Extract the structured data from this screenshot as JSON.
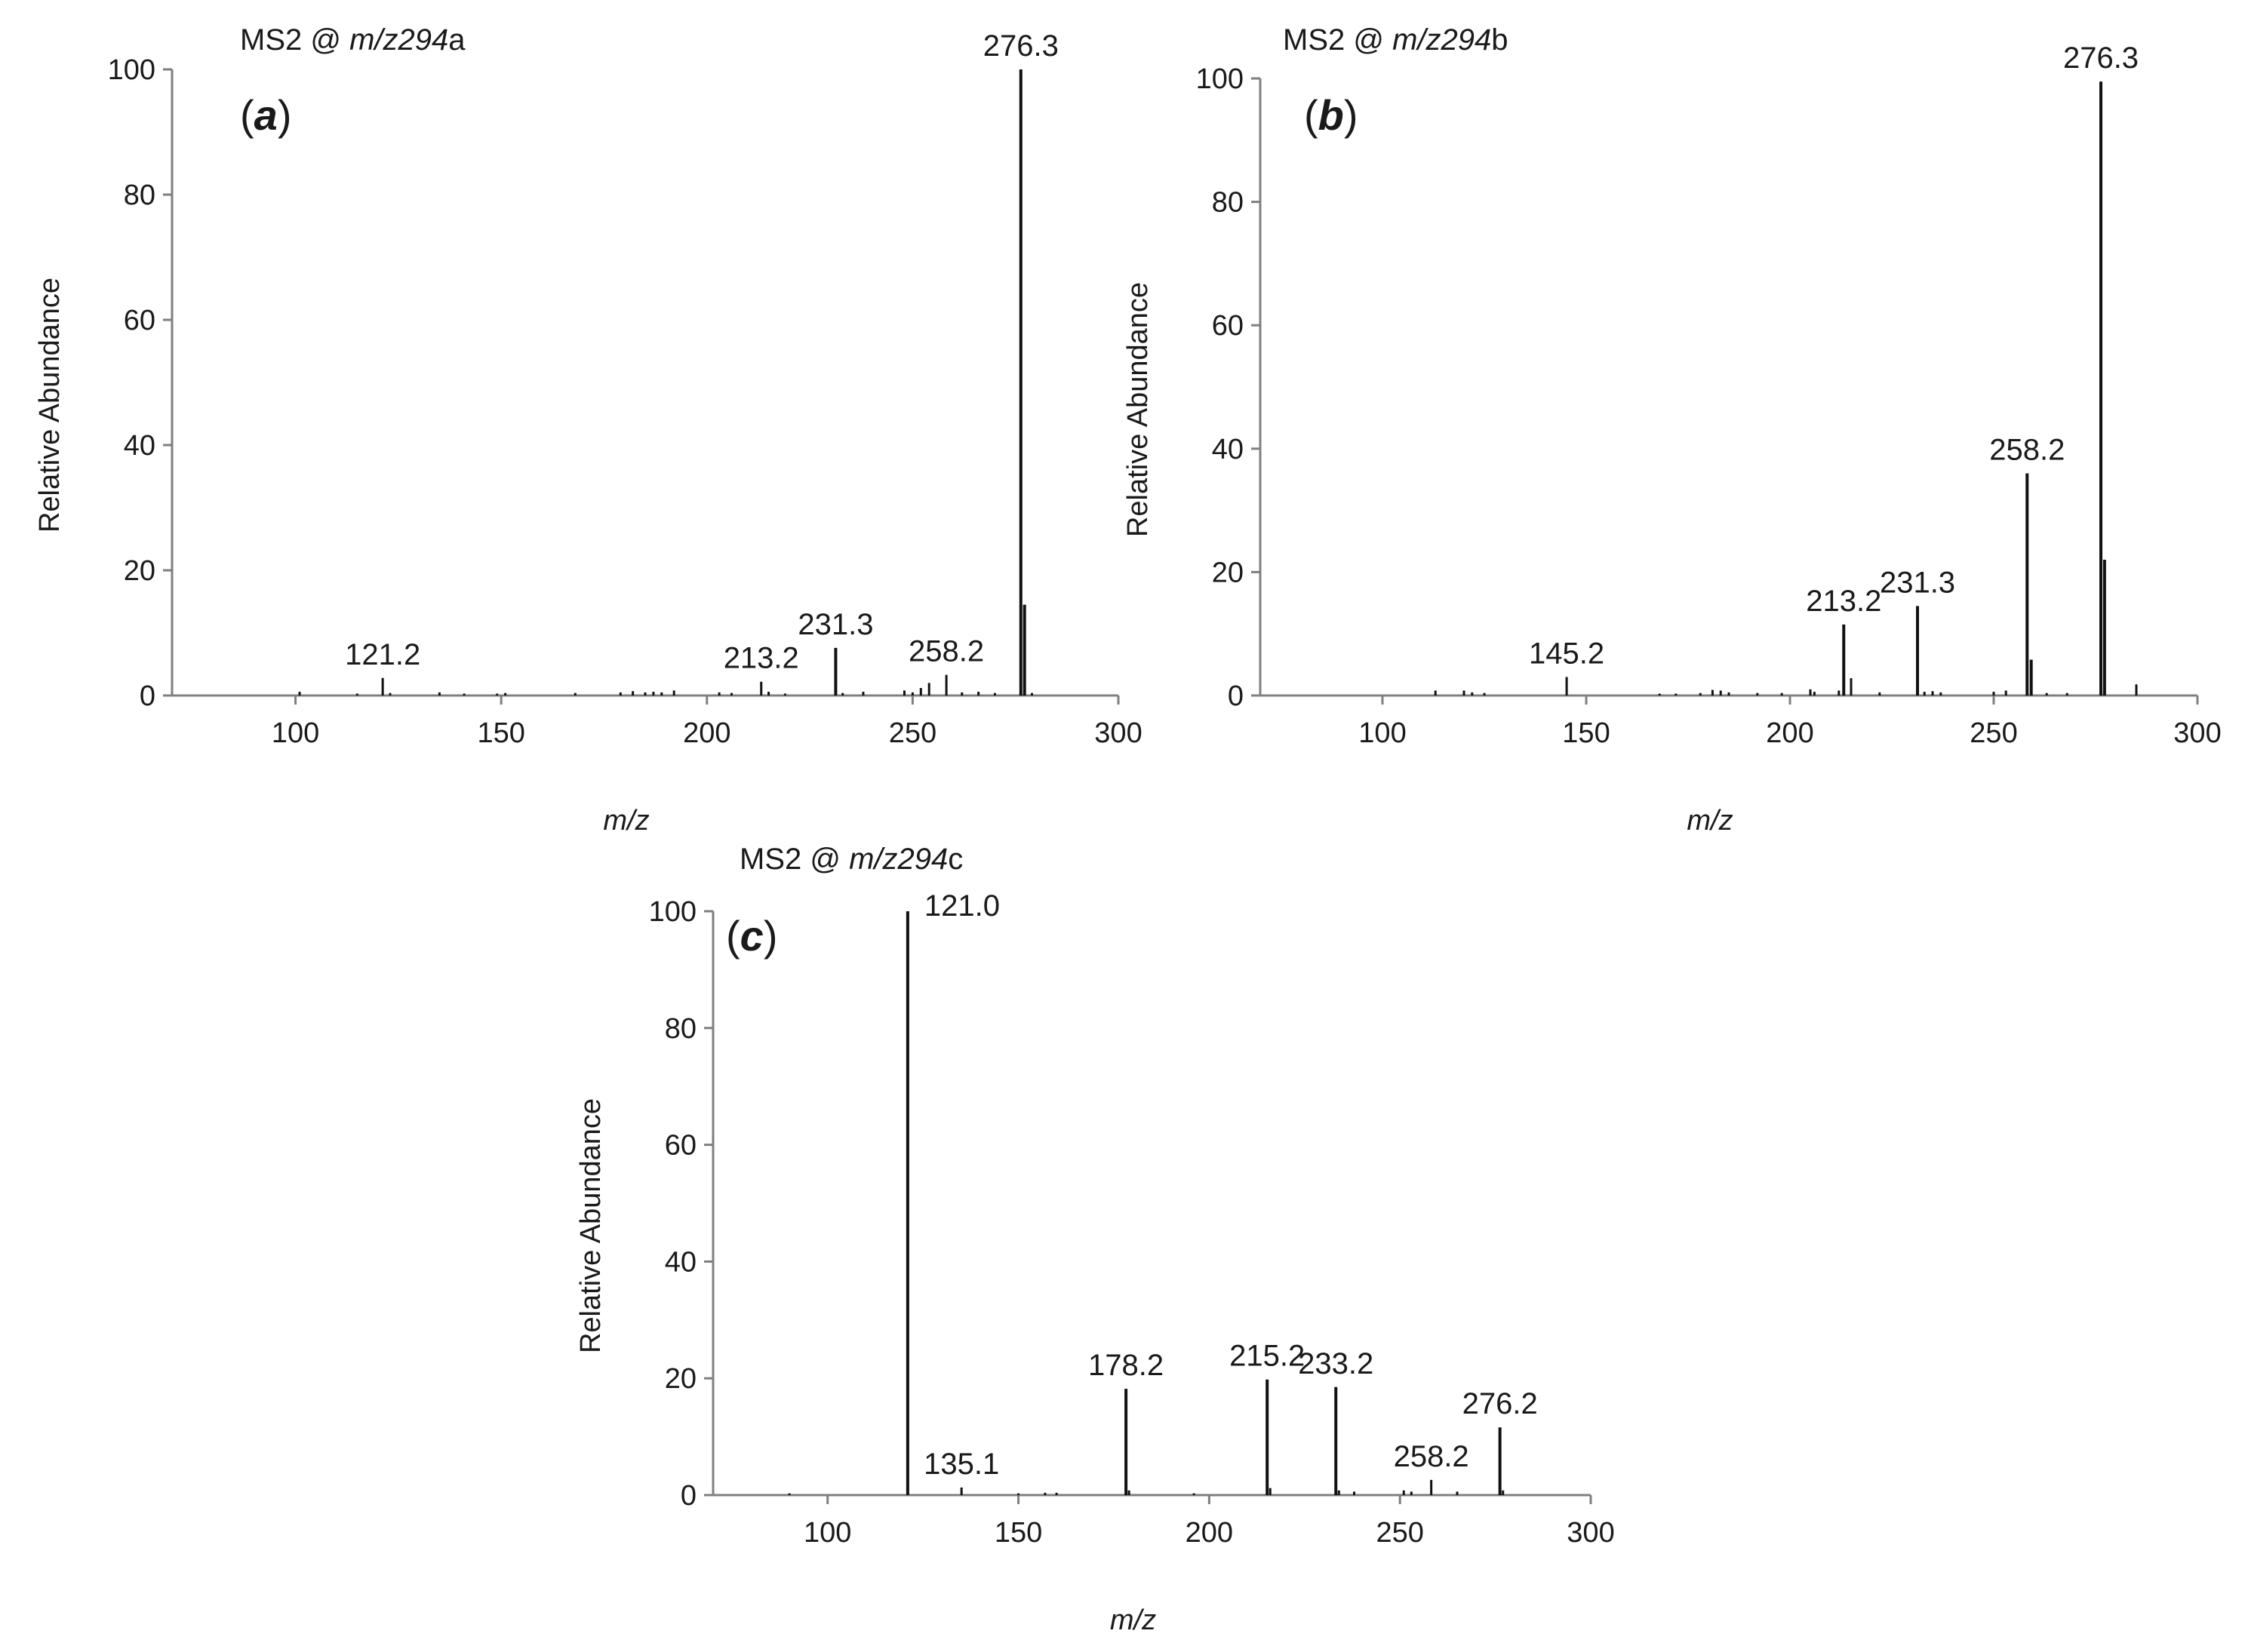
{
  "chart_data": [
    {
      "type": "bar",
      "panel": "a",
      "panel_label": "(a)",
      "title": "MS2 @ m/z294a",
      "title_parts": {
        "prefix": "MS2 @ ",
        "italic": "m/z294",
        "suffix": "a"
      },
      "xlabel": "m/z",
      "ylabel": "Relative Abundance",
      "xlim": [
        70,
        300
      ],
      "ylim": [
        0,
        100
      ],
      "xticks": [
        100,
        150,
        200,
        250,
        300
      ],
      "yticks": [
        0,
        20,
        40,
        60,
        80,
        100
      ],
      "peaks": [
        {
          "x": 101.0,
          "y": 0.6
        },
        {
          "x": 115.0,
          "y": 0.3
        },
        {
          "x": 121.2,
          "y": 2.8,
          "label": "121.2"
        },
        {
          "x": 123.0,
          "y": 0.4
        },
        {
          "x": 135.0,
          "y": 0.5
        },
        {
          "x": 141.0,
          "y": 0.3
        },
        {
          "x": 149.0,
          "y": 0.3
        },
        {
          "x": 151.0,
          "y": 0.4
        },
        {
          "x": 168.0,
          "y": 0.4
        },
        {
          "x": 179.0,
          "y": 0.5
        },
        {
          "x": 182.0,
          "y": 0.7
        },
        {
          "x": 185.0,
          "y": 0.5
        },
        {
          "x": 187.0,
          "y": 0.6
        },
        {
          "x": 189.0,
          "y": 0.5
        },
        {
          "x": 192.0,
          "y": 0.8
        },
        {
          "x": 203.0,
          "y": 0.5
        },
        {
          "x": 206.0,
          "y": 0.4
        },
        {
          "x": 213.2,
          "y": 2.2,
          "label": "213.2"
        },
        {
          "x": 215.0,
          "y": 0.6
        },
        {
          "x": 219.0,
          "y": 0.3
        },
        {
          "x": 231.3,
          "y": 7.6,
          "label": "231.3"
        },
        {
          "x": 233.0,
          "y": 0.4
        },
        {
          "x": 238.0,
          "y": 0.6
        },
        {
          "x": 248.0,
          "y": 0.8
        },
        {
          "x": 250.0,
          "y": 0.5
        },
        {
          "x": 252.0,
          "y": 1.2
        },
        {
          "x": 254.0,
          "y": 2.0
        },
        {
          "x": 258.2,
          "y": 3.3,
          "label": "258.2"
        },
        {
          "x": 262.0,
          "y": 0.5
        },
        {
          "x": 266.0,
          "y": 0.6
        },
        {
          "x": 270.0,
          "y": 0.4
        },
        {
          "x": 276.3,
          "y": 100,
          "label": "276.3"
        },
        {
          "x": 277.2,
          "y": 14.5
        },
        {
          "x": 279.0,
          "y": 0.4
        }
      ]
    },
    {
      "type": "bar",
      "panel": "b",
      "panel_label": "(b)",
      "title": "MS2 @ m/z294b",
      "title_parts": {
        "prefix": "MS2 @ ",
        "italic": "m/z294",
        "suffix": "b"
      },
      "xlabel": "m/z",
      "ylabel": "Relative Abundance",
      "xlim": [
        70,
        300
      ],
      "ylim": [
        0,
        100
      ],
      "xticks": [
        100,
        150,
        200,
        250,
        300
      ],
      "yticks": [
        0,
        20,
        40,
        60,
        80,
        100
      ],
      "peaks": [
        {
          "x": 113.0,
          "y": 0.8
        },
        {
          "x": 120.0,
          "y": 0.8
        },
        {
          "x": 122.0,
          "y": 0.5
        },
        {
          "x": 125.0,
          "y": 0.4
        },
        {
          "x": 145.2,
          "y": 3.0,
          "label": "145.2"
        },
        {
          "x": 168.0,
          "y": 0.3
        },
        {
          "x": 172.0,
          "y": 0.3
        },
        {
          "x": 178.0,
          "y": 0.4
        },
        {
          "x": 181.0,
          "y": 0.9
        },
        {
          "x": 183.0,
          "y": 0.8
        },
        {
          "x": 185.0,
          "y": 0.5
        },
        {
          "x": 192.0,
          "y": 0.4
        },
        {
          "x": 198.0,
          "y": 0.4
        },
        {
          "x": 205.0,
          "y": 1.0
        },
        {
          "x": 206.0,
          "y": 0.6
        },
        {
          "x": 212.0,
          "y": 0.8
        },
        {
          "x": 213.2,
          "y": 11.5,
          "label": "213.2"
        },
        {
          "x": 215.0,
          "y": 2.8
        },
        {
          "x": 222.0,
          "y": 0.5
        },
        {
          "x": 231.3,
          "y": 14.5,
          "label": "231.3"
        },
        {
          "x": 233.0,
          "y": 0.6
        },
        {
          "x": 235.0,
          "y": 0.7
        },
        {
          "x": 237.0,
          "y": 0.5
        },
        {
          "x": 250.0,
          "y": 0.6
        },
        {
          "x": 253.0,
          "y": 0.8
        },
        {
          "x": 258.2,
          "y": 36,
          "label": "258.2"
        },
        {
          "x": 259.2,
          "y": 5.8
        },
        {
          "x": 263.0,
          "y": 0.4
        },
        {
          "x": 268.0,
          "y": 0.4
        },
        {
          "x": 276.3,
          "y": 99.5,
          "label": "276.3"
        },
        {
          "x": 277.2,
          "y": 22
        },
        {
          "x": 285.0,
          "y": 1.8
        }
      ]
    },
    {
      "type": "bar",
      "panel": "c",
      "panel_label": "(c)",
      "title": "MS2 @ m/z294c",
      "title_parts": {
        "prefix": "MS2 @ ",
        "italic": "m/z294",
        "suffix": "c"
      },
      "xlabel": "m/z",
      "ylabel": "Relative Abundance",
      "xlim": [
        70,
        300
      ],
      "ylim": [
        0,
        100
      ],
      "xticks": [
        100,
        150,
        200,
        250,
        300
      ],
      "yticks": [
        0,
        20,
        40,
        60,
        80,
        100
      ],
      "peaks": [
        {
          "x": 90.0,
          "y": 0.3
        },
        {
          "x": 121.0,
          "y": 100,
          "label": "121.0"
        },
        {
          "x": 135.1,
          "y": 1.3,
          "label": "135.1"
        },
        {
          "x": 150.0,
          "y": 0.3
        },
        {
          "x": 157.0,
          "y": 0.4
        },
        {
          "x": 160.0,
          "y": 0.4
        },
        {
          "x": 178.2,
          "y": 18.2,
          "label": "178.2"
        },
        {
          "x": 179.0,
          "y": 0.8
        },
        {
          "x": 196.0,
          "y": 0.3
        },
        {
          "x": 215.2,
          "y": 19.8,
          "label": "215.2"
        },
        {
          "x": 216.0,
          "y": 1.2
        },
        {
          "x": 233.2,
          "y": 18.5,
          "label": "233.2"
        },
        {
          "x": 234.0,
          "y": 0.8
        },
        {
          "x": 238.0,
          "y": 0.6
        },
        {
          "x": 251.0,
          "y": 0.8
        },
        {
          "x": 253.0,
          "y": 0.6
        },
        {
          "x": 258.2,
          "y": 2.6,
          "label": "258.2"
        },
        {
          "x": 265.0,
          "y": 0.6
        },
        {
          "x": 276.2,
          "y": 11.6,
          "label": "276.2"
        },
        {
          "x": 277.0,
          "y": 0.8
        }
      ]
    }
  ]
}
